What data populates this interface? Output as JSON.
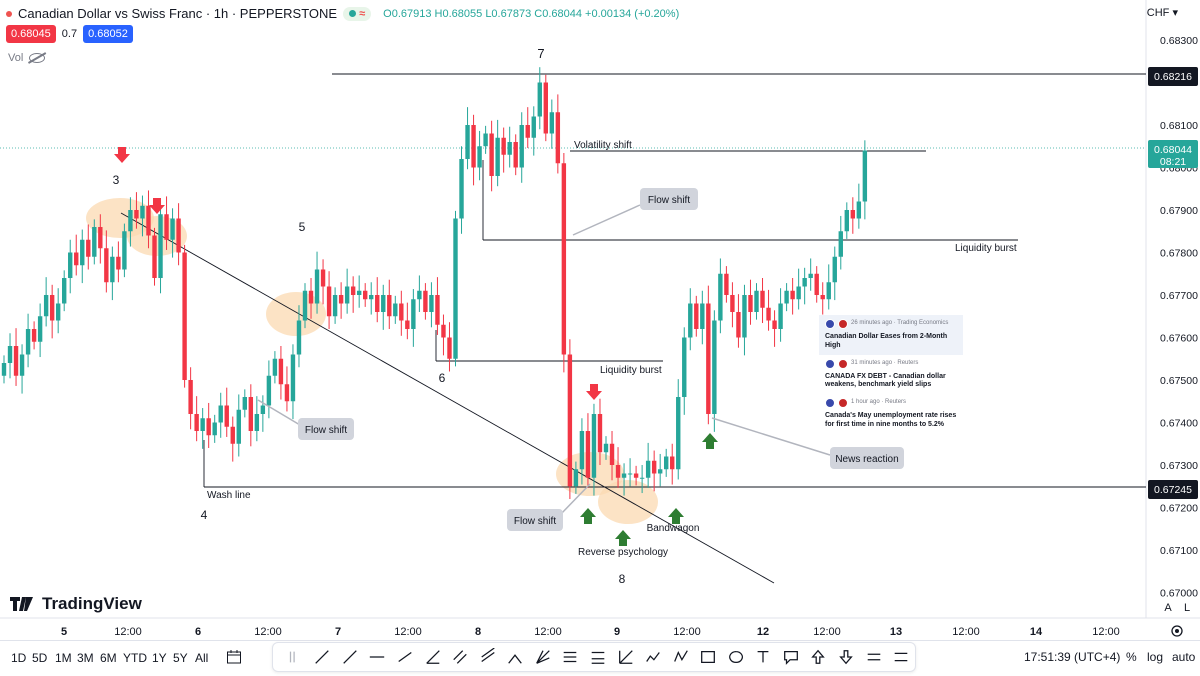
{
  "header": {
    "title": "Canadian Dollar vs Swiss Franc · 1h · PEPPERSTONE",
    "open": "O0.67913",
    "high": "H0.68055",
    "low": "L0.67873",
    "close": "C0.68044",
    "change": "+0.00134 (+0.20%)",
    "bid": "0.68045",
    "spread": "0.7",
    "ask": "0.68052",
    "vol_label": "Vol",
    "currency": "CHF"
  },
  "chart_data": {
    "type": "candlestick",
    "symbol": "CADCHF",
    "ylim": [
      0.6694,
      0.6835
    ],
    "y_ticks": [
      0.67,
      0.671,
      0.672,
      0.673,
      0.674,
      0.675,
      0.676,
      0.677,
      0.678,
      0.679,
      0.68,
      0.681,
      0.683
    ],
    "y_tick_labels": [
      "0.67000",
      "0.67100",
      "0.67200",
      "0.67300",
      "0.67400",
      "0.67500",
      "0.67600",
      "0.67700",
      "0.67800",
      "0.67900",
      "0.68000",
      "0.68100",
      "0.68300"
    ],
    "x_tick_labels": [
      "5",
      "12:00",
      "6",
      "12:00",
      "7",
      "12:00",
      "8",
      "12:00",
      "9",
      "12:00",
      "12",
      "12:00",
      "13",
      "12:00",
      "14",
      "12:00"
    ],
    "bars_close": [
      0.6754,
      0.6758,
      0.6751,
      0.6756,
      0.6762,
      0.6759,
      0.6765,
      0.677,
      0.6764,
      0.6768,
      0.6774,
      0.678,
      0.6777,
      0.6783,
      0.6779,
      0.6786,
      0.6781,
      0.6773,
      0.6779,
      0.6776,
      0.6785,
      0.679,
      0.6788,
      0.6791,
      0.6784,
      0.6774,
      0.6789,
      0.6783,
      0.6788,
      0.678,
      0.675,
      0.6742,
      0.6738,
      0.6741,
      0.6737,
      0.674,
      0.6744,
      0.6739,
      0.6735,
      0.6743,
      0.6746,
      0.6738,
      0.6742,
      0.6744,
      0.6751,
      0.6755,
      0.6749,
      0.6745,
      0.6756,
      0.6764,
      0.6771,
      0.6768,
      0.6776,
      0.6772,
      0.6765,
      0.677,
      0.6768,
      0.6772,
      0.677,
      0.6771,
      0.6769,
      0.677,
      0.6766,
      0.677,
      0.6765,
      0.6768,
      0.6764,
      0.6762,
      0.6769,
      0.6771,
      0.6766,
      0.677,
      0.6763,
      0.676,
      0.6755,
      0.6788,
      0.6802,
      0.681,
      0.68,
      0.6805,
      0.6808,
      0.6798,
      0.6807,
      0.6803,
      0.6806,
      0.68,
      0.681,
      0.6807,
      0.6812,
      0.682,
      0.6808,
      0.6813,
      0.6801,
      0.6756,
      0.6725,
      0.6729,
      0.6738,
      0.6727,
      0.6742,
      0.6733,
      0.6735,
      0.673,
      0.6727,
      0.6728,
      0.6728,
      0.6727,
      0.6727,
      0.6731,
      0.6728,
      0.6729,
      0.6732,
      0.6729,
      0.6746,
      0.676,
      0.6768,
      0.6762,
      0.6768,
      0.6742,
      0.6764,
      0.6775,
      0.677,
      0.6766,
      0.676,
      0.677,
      0.6766,
      0.6771,
      0.6767,
      0.6764,
      0.6762,
      0.6768,
      0.6771,
      0.6769,
      0.6772,
      0.6774,
      0.6775,
      0.677,
      0.6769,
      0.6773,
      0.6779,
      0.6785,
      0.679,
      0.6788,
      0.6792,
      0.6804
    ],
    "annotations": [
      {
        "text": "7"
      },
      {
        "text": "3"
      },
      {
        "text": "5"
      },
      {
        "text": "6"
      },
      {
        "text": "4"
      },
      {
        "text": "8"
      },
      {
        "text": "Wash line"
      },
      {
        "text": "Volatility shift"
      },
      {
        "text": "Liquidity burst"
      },
      {
        "text": "Liquidity burst"
      },
      {
        "text": "Reverse psychology"
      },
      {
        "text": "Bandwagon"
      }
    ],
    "callouts": [
      "Flow shift",
      "Flow shift",
      "Flow shift",
      "News reaction"
    ],
    "price_labels": [
      {
        "value": "0.68216",
        "color": "#131722"
      },
      {
        "value": "0.68044",
        "sub": "08:21",
        "color": "#26a69a"
      },
      {
        "value": "0.67245",
        "color": "#131722"
      }
    ],
    "colors": {
      "up": "#26a69a",
      "down": "#f23645",
      "arrow_down": "#f23645",
      "arrow_up": "#2e7d32",
      "highlight": "#fbd9b1"
    }
  },
  "news": [
    {
      "meta": "26 minutes ago · Trading Economics",
      "title": "Canadian Dollar Eases from 2-Month High"
    },
    {
      "meta": "31 minutes ago · Reuters",
      "title": "CANADA FX DEBT - Canadian dollar weakens, benchmark yield slips"
    },
    {
      "meta": "1 hour ago · Reuters",
      "title": "Canada's May unemployment rate rises for first time in nine months to 5.2%"
    }
  ],
  "footer": {
    "logo": "TradingView",
    "timeframes": [
      "1D",
      "5D",
      "1M",
      "3M",
      "6M",
      "YTD",
      "1Y",
      "5Y",
      "All"
    ],
    "clock": "17:51:39 (UTC+4)",
    "pct": "%",
    "log": "log",
    "auto": "auto",
    "axis_a": "A",
    "axis_l": "L"
  }
}
